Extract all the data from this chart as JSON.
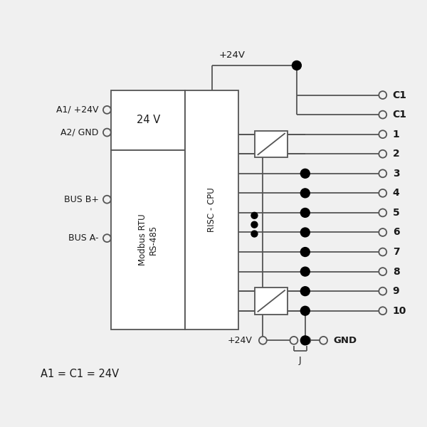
{
  "bg_color": "#f0f0f0",
  "line_color": "#555555",
  "text_color": "#1a1a1a",
  "bottom_text": "A1 = C1 = 24V",
  "left_labels": [
    "A1/ +24V",
    "A2/ GND",
    "BUS B+",
    "BUS A-"
  ],
  "right_labels": [
    "C1",
    "C1",
    "1",
    "2",
    "3",
    "4",
    "5",
    "6",
    "7",
    "8",
    "9",
    "10"
  ],
  "box1_text_top": "24 V",
  "box_modbus_text": "Modbus RTU\nRS-485",
  "box_risc_text": "RISC - CPU",
  "top_label": "+24V",
  "bottom_plus24v": "+24V",
  "gnd_label": "GND",
  "j_label": "J"
}
